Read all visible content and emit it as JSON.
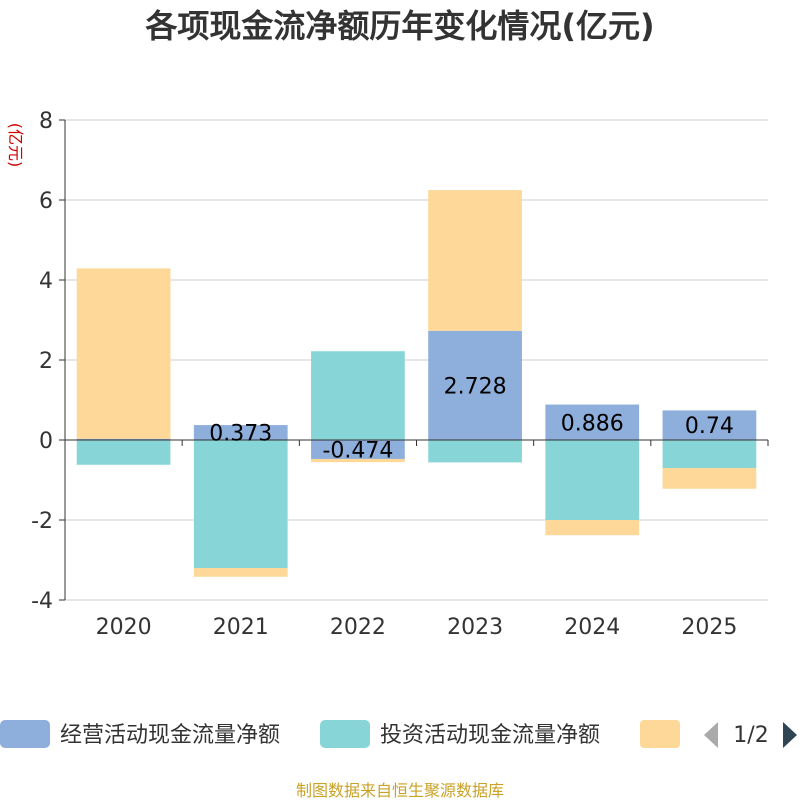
{
  "chart_data": {
    "type": "bar",
    "stacked": true,
    "title": "各项现金流净额历年变化情况(亿元)",
    "ylabel": "(亿元)",
    "xlabel": "",
    "ylim": [
      -4,
      8
    ],
    "yticks": [
      -4,
      -2,
      0,
      2,
      4,
      6,
      8
    ],
    "grid": true,
    "categories": [
      "2020",
      "2021",
      "2022",
      "2023",
      "2024",
      "2025"
    ],
    "series": [
      {
        "name": "经营活动现金流量净额",
        "color": "#8eaedb",
        "values": [
          0.03,
          0.373,
          -0.474,
          2.728,
          0.886,
          0.74
        ],
        "labels": [
          "",
          "0.373",
          "-0.474",
          "2.728",
          "0.886",
          "0.74"
        ]
      },
      {
        "name": "投资活动现金流量净额",
        "color": "#88d5d8",
        "values": [
          -0.62,
          -3.2,
          2.22,
          -0.56,
          -2.0,
          -0.7
        ]
      },
      {
        "name": "",
        "color": "#fdd899",
        "values": [
          4.26,
          -0.22,
          -0.08,
          3.52,
          -0.38,
          -0.52
        ]
      }
    ],
    "legend_position": "bottom"
  },
  "legend": {
    "page": "1/2",
    "items": [
      {
        "label": "经营活动现金流量净额",
        "color": "#8eaedb"
      },
      {
        "label": "投资活动现金流量净额",
        "color": "#88d5d8"
      },
      {
        "label": "",
        "color": "#fdd899"
      }
    ]
  },
  "footer": {
    "source": "制图数据来自恒生聚源数据库"
  }
}
